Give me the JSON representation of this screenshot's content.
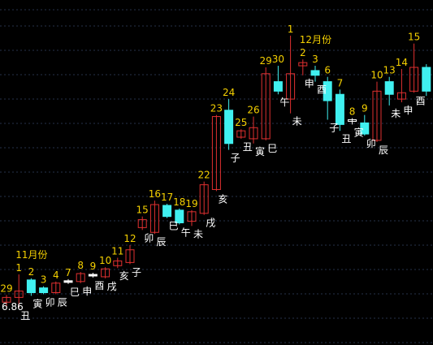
{
  "chart_data": {
    "type": "candlestick",
    "colors": {
      "up": "#e03030",
      "down": "#40f0f0",
      "neutral": "#ffffff",
      "top_label": "#f5d000",
      "bottom_label": "#ffffff",
      "grid": "#26324a",
      "background": "#000000"
    },
    "grid": true,
    "month_markers": [
      {
        "label": "11月份",
        "index": 1
      },
      {
        "label": "12月份",
        "index": 24
      }
    ],
    "candles": [
      {
        "top": "29",
        "bottom": "",
        "open": 2.0,
        "close": 2.6,
        "high": 2.9,
        "low": 1.2
      },
      {
        "top": "1",
        "bottom": "丑",
        "open": 2.6,
        "close": 3.4,
        "high": 5.5,
        "low": 1.3
      },
      {
        "top": "2",
        "bottom": "寅",
        "open": 4.8,
        "close": 3.2,
        "high": 5.0,
        "low": 2.8
      },
      {
        "top": "3",
        "bottom": "卯",
        "open": 3.8,
        "close": 3.2,
        "high": 4.0,
        "low": 3.0
      },
      {
        "top": "4",
        "bottom": "辰",
        "open": 3.2,
        "close": 4.4,
        "high": 4.6,
        "low": 3.0
      },
      {
        "top": "7",
        "bottom": "巳",
        "open": 4.7,
        "close": 4.5,
        "high": 4.9,
        "low": 4.3
      },
      {
        "top": "8",
        "bottom": "申",
        "open": 4.6,
        "close": 5.6,
        "high": 5.8,
        "low": 4.4
      },
      {
        "top": "9",
        "bottom": "酉",
        "open": 5.5,
        "close": 5.3,
        "high": 5.7,
        "low": 5.1
      },
      {
        "top": "10",
        "bottom": "戌",
        "open": 5.2,
        "close": 6.2,
        "high": 6.4,
        "low": 5.0
      },
      {
        "top": "11",
        "bottom": "亥",
        "open": 6.6,
        "close": 7.2,
        "high": 7.6,
        "low": 6.3
      },
      {
        "top": "12",
        "bottom": "子",
        "open": 7.0,
        "close": 8.6,
        "high": 9.2,
        "low": 6.8
      },
      {
        "top": "15",
        "bottom": "卯",
        "open": 11.4,
        "close": 12.4,
        "high": 12.8,
        "low": 11.1
      },
      {
        "top": "16",
        "bottom": "辰",
        "open": 10.8,
        "close": 14.3,
        "high": 14.8,
        "low": 10.6
      },
      {
        "top": "17",
        "bottom": "巳",
        "open": 14.2,
        "close": 12.8,
        "high": 14.4,
        "low": 12.6
      },
      {
        "top": "18",
        "bottom": "午",
        "open": 13.6,
        "close": 12.0,
        "high": 13.8,
        "low": 11.8
      },
      {
        "top": "19",
        "bottom": "未",
        "open": 12.2,
        "close": 13.4,
        "high": 13.6,
        "low": 11.6
      },
      {
        "top": "22",
        "bottom": "戌",
        "open": 13.2,
        "close": 16.8,
        "high": 17.2,
        "low": 13.0
      },
      {
        "top": "23",
        "bottom": "亥",
        "open": 16.2,
        "close": 25.4,
        "high": 25.6,
        "low": 16.0
      },
      {
        "top": "24",
        "bottom": "子",
        "open": 26.2,
        "close": 22.0,
        "high": 27.6,
        "low": 21.2
      },
      {
        "top": "25",
        "bottom": "丑",
        "open": 22.8,
        "close": 23.6,
        "high": 23.8,
        "low": 22.6
      },
      {
        "top": "26",
        "bottom": "寅",
        "open": 22.6,
        "close": 24.0,
        "high": 25.4,
        "low": 22.0
      },
      {
        "top": "29",
        "bottom": "巳",
        "open": 22.6,
        "close": 30.8,
        "high": 31.6,
        "low": 22.4
      },
      {
        "top": "30",
        "bottom": "午",
        "open": 29.8,
        "close": 28.6,
        "high": 31.8,
        "low": 28.2
      },
      {
        "top": "1",
        "bottom": "未",
        "open": 27.6,
        "close": 30.8,
        "high": 35.6,
        "low": 25.8
      },
      {
        "top": "2",
        "bottom": "申",
        "open": 31.8,
        "close": 32.2,
        "high": 32.6,
        "low": 30.6
      },
      {
        "top": "3",
        "bottom": "酉",
        "open": 31.2,
        "close": 30.6,
        "high": 31.8,
        "low": 29.8
      },
      {
        "top": "6",
        "bottom": "子",
        "open": 29.8,
        "close": 27.4,
        "high": 30.4,
        "low": 25.0
      },
      {
        "top": "7",
        "bottom": "丑",
        "open": 28.2,
        "close": 24.4,
        "high": 28.8,
        "low": 23.6
      },
      {
        "top": "8",
        "bottom": "寅",
        "open": 24.8,
        "close": 25.0,
        "high": 25.2,
        "low": 24.4
      },
      {
        "top": "9",
        "bottom": "卯",
        "open": 24.6,
        "close": 23.2,
        "high": 25.6,
        "low": 23.0
      },
      {
        "top": "10",
        "bottom": "辰",
        "open": 22.4,
        "close": 28.6,
        "high": 29.8,
        "low": 22.2
      },
      {
        "top": "13",
        "bottom": "未",
        "open": 29.8,
        "close": 28.2,
        "high": 30.4,
        "low": 26.8
      },
      {
        "top": "14",
        "bottom": "申",
        "open": 27.6,
        "close": 28.4,
        "high": 31.4,
        "low": 27.2
      },
      {
        "top": "15",
        "bottom": "酉",
        "open": 28.6,
        "close": 31.6,
        "high": 34.6,
        "low": 28.4
      },
      {
        "top": "",
        "bottom": "",
        "open": 31.6,
        "close": 28.6,
        "high": 32.0,
        "low": 28.0
      }
    ],
    "corner_text": "6.86"
  }
}
